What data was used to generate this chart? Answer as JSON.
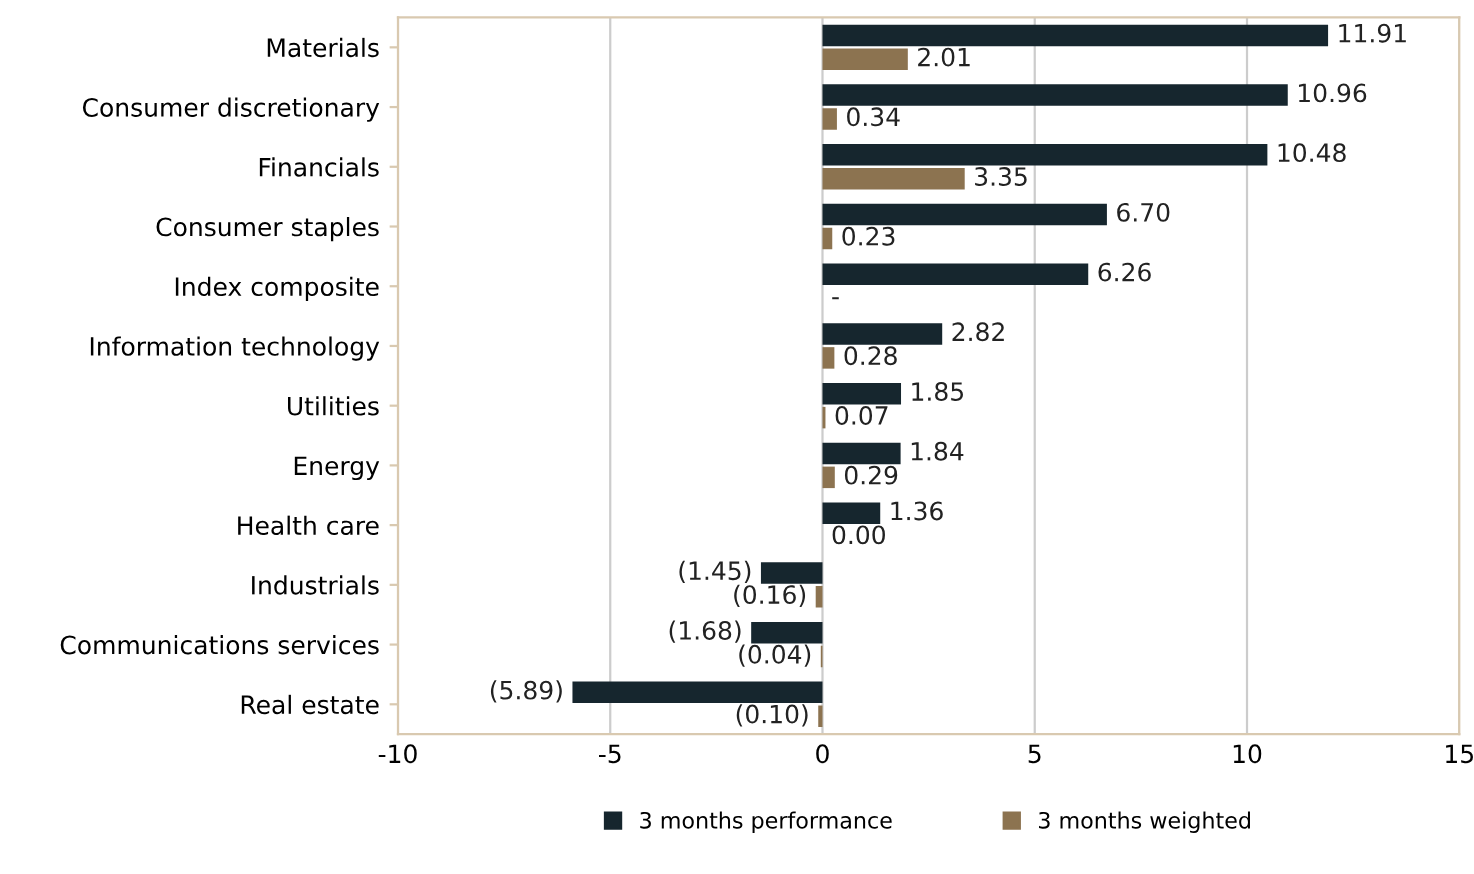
{
  "chart_data": {
    "type": "bar",
    "orientation": "horizontal",
    "categories": [
      "Materials",
      "Consumer discretionary",
      "Financials",
      "Consumer staples",
      "Index composite",
      "Information technology",
      "Utilities",
      "Energy",
      "Health care",
      "Industrials",
      "Communications services",
      "Real estate"
    ],
    "series": [
      {
        "name": "3 months performance",
        "color": "#16262e",
        "values": [
          11.91,
          10.96,
          10.48,
          6.7,
          6.26,
          2.82,
          1.85,
          1.84,
          1.36,
          -1.45,
          -1.68,
          -5.89
        ],
        "value_labels": [
          "11.91",
          "10.96",
          "10.48",
          "6.70",
          "6.26",
          "2.82",
          "1.85",
          "1.84",
          "1.36",
          "(1.45)",
          "(1.68)",
          "(5.89)"
        ]
      },
      {
        "name": "3 months weighted",
        "color": "#8c7350",
        "values": [
          2.01,
          0.34,
          3.35,
          0.23,
          null,
          0.28,
          0.07,
          0.29,
          0.0,
          -0.16,
          -0.04,
          -0.1
        ],
        "value_labels": [
          "2.01",
          "0.34",
          "3.35",
          "0.23",
          "-",
          "0.28",
          "0.07",
          "0.29",
          "0.00",
          "(0.16)",
          "(0.04)",
          "(0.10)"
        ]
      }
    ],
    "xlim": [
      -10,
      15
    ],
    "xticks": [
      -10,
      -5,
      0,
      5,
      10,
      15
    ],
    "grid": "x",
    "legend": "bottom"
  }
}
